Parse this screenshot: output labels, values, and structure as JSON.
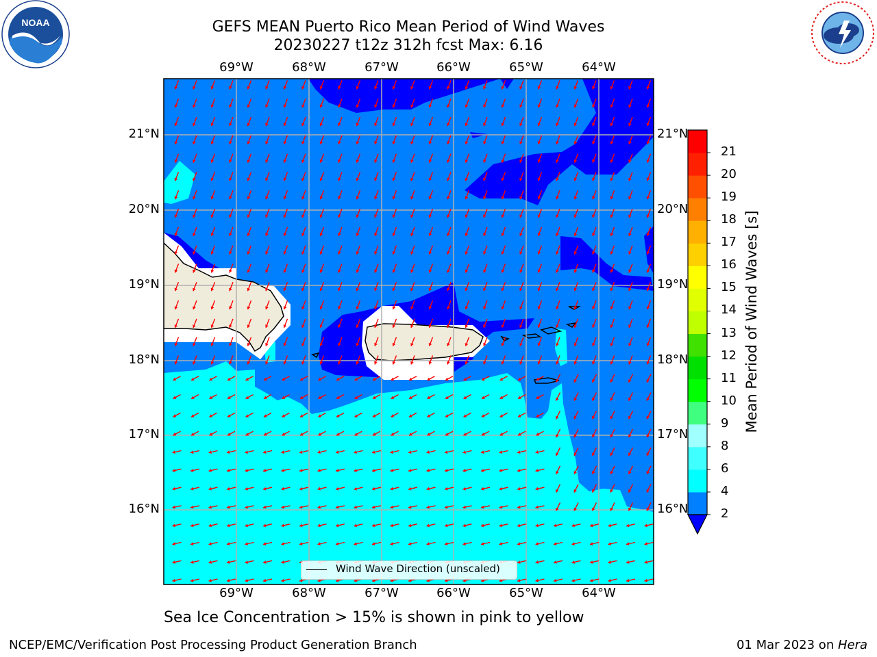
{
  "header": {
    "title_line1": "GEFS MEAN Puerto Rico Mean Period of Wind Waves",
    "title_line2": "20230227 t12z 312h fcst   Max: 6.16"
  },
  "logos": {
    "left": "noaa-logo",
    "left_text": "NOAA",
    "left_ring_text": "NATIONAL OCEANIC AND ATMOSPHERIC ADMINISTRATION · U.S. DEPARTMENT OF COMMERCE",
    "right": "national-weather-service-logo",
    "right_ring_text": "NATIONAL WEATHER SERVICE"
  },
  "map": {
    "lon_labels": [
      "69°W",
      "68°W",
      "67°W",
      "66°W",
      "65°W",
      "64°W"
    ],
    "lat_labels": [
      "21°N",
      "20°N",
      "19°N",
      "18°N",
      "17°N",
      "16°N"
    ],
    "legend_label": "Wind Wave Direction (unscaled)",
    "colors": {
      "land": "#efecdc",
      "level_0_2": "#0000ff",
      "level_2_4": "#0080ff",
      "level_4_6": "#00ffff",
      "arrow": "#ff0000",
      "grid": "#b0b0b0"
    }
  },
  "colorbar": {
    "label": "Mean Period of Wind Waves [s]",
    "ticks": [
      "2",
      "4",
      "6",
      "8",
      "9",
      "10",
      "11",
      "12",
      "13",
      "14",
      "15",
      "16",
      "17",
      "18",
      "19",
      "20",
      "21"
    ],
    "colors": [
      "#0080ff",
      "#00ffff",
      "#40ffff",
      "#a0ffff",
      "#40ff80",
      "#00ff00",
      "#00e000",
      "#40e000",
      "#c0ff00",
      "#e0ff00",
      "#ffff00",
      "#ffd000",
      "#ffb000",
      "#ff8000",
      "#ff5000",
      "#ff2000",
      "#ff0000"
    ],
    "under_color": "#0000ff"
  },
  "subtitle": "Sea Ice Concentration > 15% is shown in pink to yellow",
  "footer": {
    "left": "NCEP/EMC/Verification Post Processing Product Generation Branch",
    "right_date": "01 Mar 2023 on ",
    "right_host": "Hera"
  }
}
